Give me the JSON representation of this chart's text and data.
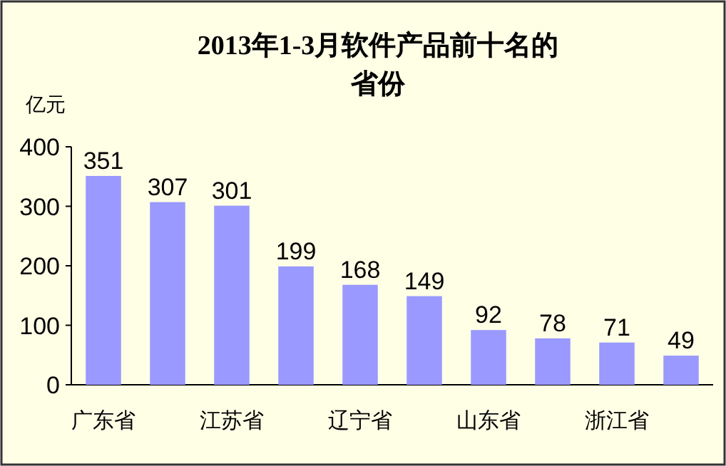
{
  "chart_data": {
    "type": "bar",
    "title": "2013年1-3月软件产品前十名的省份",
    "ylabel": "亿元",
    "categories": [
      "广东省",
      null,
      "江苏省",
      null,
      "辽宁省",
      null,
      "山东省",
      null,
      "浙江省",
      null
    ],
    "values": [
      351,
      307,
      301,
      199,
      168,
      149,
      92,
      78,
      71,
      49
    ],
    "color": "#9999ff",
    "ylim": [
      0,
      400
    ],
    "yticks": [
      0,
      100,
      200,
      300,
      400
    ],
    "data_labels": true,
    "grid": false
  }
}
